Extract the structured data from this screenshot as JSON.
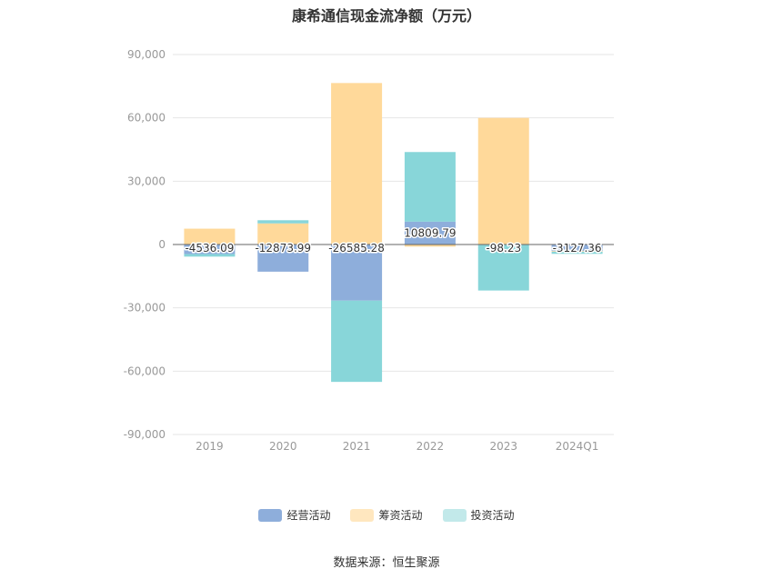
{
  "chart_data": {
    "type": "bar",
    "stacked": true,
    "title": "康希通信现金流净额（万元）",
    "categories": [
      "2019",
      "2020",
      "2021",
      "2022",
      "2023",
      "2024Q1"
    ],
    "series": [
      {
        "name": "经营活动",
        "color": "#8eaedb",
        "values": [
          -4536.09,
          -12873.99,
          -26585.28,
          10809.79,
          -98.23,
          -3127.36
        ]
      },
      {
        "name": "筹资活动",
        "color": "#ffd99a",
        "values": [
          7500,
          10000,
          76500,
          -1000,
          60000,
          -300
        ]
      },
      {
        "name": "投资活动",
        "color": "#88d6d9",
        "values": [
          -1200,
          1500,
          -38500,
          33000,
          -21700,
          -1000
        ]
      }
    ],
    "data_labels": [
      "-4536.09",
      "-12873.99",
      "-26585.28",
      "10809.79",
      "-98.23",
      "-3127.36"
    ],
    "yticks": [
      "90,000",
      "60,000",
      "30,000",
      "0",
      "-30,000",
      "-60,000",
      "-90,000"
    ],
    "ylim": [
      -90000,
      90000
    ],
    "grid": true,
    "legend_position": "bottom"
  },
  "legend_colors": {
    "经营活动": "#8eaedb",
    "筹资活动": "#ffe7bf",
    "投资活动": "#c2e9ea"
  },
  "source_text": "数据来源：恒生聚源"
}
